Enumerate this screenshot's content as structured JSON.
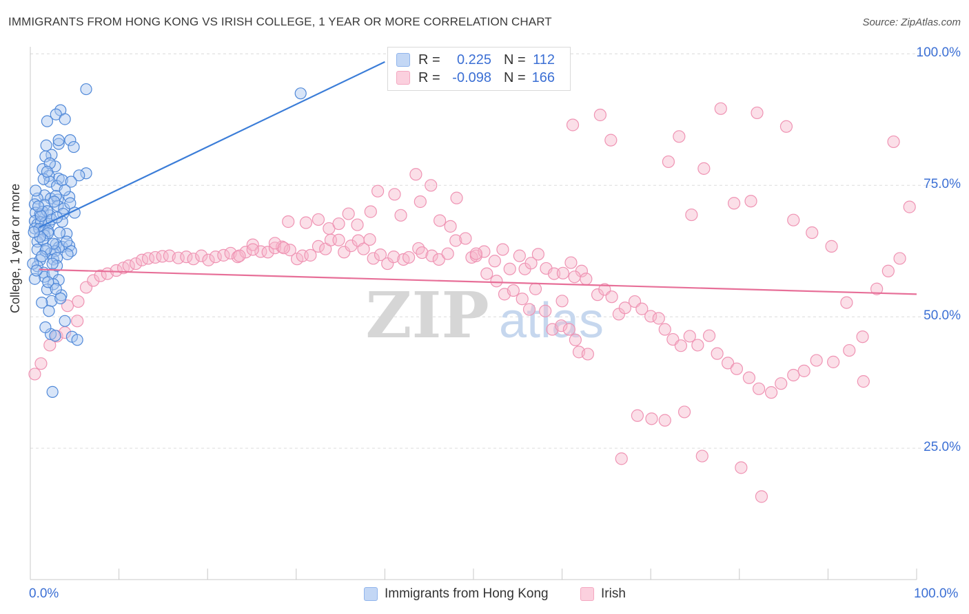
{
  "title": "IMMIGRANTS FROM HONG KONG VS IRISH COLLEGE, 1 YEAR OR MORE CORRELATION CHART",
  "source": "Source: ZipAtlas.com",
  "watermark": {
    "zip": "ZIP",
    "atlas": "atlas"
  },
  "legend": {
    "rows": [
      {
        "label": "R =",
        "r": "0.225",
        "n_label": "N =",
        "n": "112",
        "color": "#8fb4ec"
      },
      {
        "label": "R =",
        "r": "-0.098",
        "n_label": "N =",
        "n": "166",
        "color": "#f4a7c0"
      }
    ]
  },
  "chart_data": {
    "type": "scatter",
    "title": "IMMIGRANTS FROM HONG KONG VS IRISH COLLEGE, 1 YEAR OR MORE CORRELATION CHART",
    "xlabel": "",
    "ylabel": "College, 1 year or more",
    "xlim": [
      0,
      100
    ],
    "ylim": [
      0,
      103
    ],
    "x_tick_labels": [
      "0.0%",
      "100.0%"
    ],
    "y_tick_labels": [
      "25.0%",
      "50.0%",
      "75.0%",
      "100.0%"
    ],
    "y_tick_values": [
      25,
      50,
      75,
      100
    ],
    "grid": true,
    "series": [
      {
        "name": "Immigrants from Hong Kong",
        "color": "#3b7dd8",
        "fill": "#a9c6f0",
        "trend": {
          "x": [
            1,
            40
          ],
          "y": [
            67,
            98.5
          ]
        },
        "points": [
          [
            6.3,
            93.3
          ],
          [
            30.5,
            92.5
          ],
          [
            3.4,
            89.3
          ],
          [
            2.9,
            88.5
          ],
          [
            1.9,
            87.2
          ],
          [
            3.9,
            87.6
          ],
          [
            1.8,
            82.6
          ],
          [
            3.2,
            82.9
          ],
          [
            3.2,
            83.6
          ],
          [
            4.5,
            83.6
          ],
          [
            4.9,
            82.3
          ],
          [
            2.4,
            80.8
          ],
          [
            1.7,
            80.5
          ],
          [
            1.4,
            78.1
          ],
          [
            2.8,
            78.6
          ],
          [
            3.2,
            76.3
          ],
          [
            2.1,
            76.8
          ],
          [
            2.2,
            75.7
          ],
          [
            3.0,
            74.9
          ],
          [
            3.6,
            76.0
          ],
          [
            6.3,
            77.3
          ],
          [
            5.5,
            76.9
          ],
          [
            4.6,
            75.7
          ],
          [
            1.6,
            73.1
          ],
          [
            0.8,
            72.5
          ],
          [
            2.3,
            72.5
          ],
          [
            3.1,
            72.3
          ],
          [
            2.9,
            73.0
          ],
          [
            4.4,
            72.8
          ],
          [
            0.5,
            71.4
          ],
          [
            1.6,
            71.3
          ],
          [
            3.1,
            71.1
          ],
          [
            3.8,
            70.6
          ],
          [
            4.5,
            71.6
          ],
          [
            0.6,
            69.8
          ],
          [
            1.1,
            69.5
          ],
          [
            1.4,
            70.0
          ],
          [
            2.2,
            69.3
          ],
          [
            3.7,
            69.6
          ],
          [
            5.0,
            69.8
          ],
          [
            0.5,
            68.2
          ],
          [
            0.8,
            67.6
          ],
          [
            1.2,
            68.0
          ],
          [
            1.7,
            67.9
          ],
          [
            2.1,
            67.7
          ],
          [
            3.6,
            68.1
          ],
          [
            0.5,
            66.8
          ],
          [
            1.0,
            66.7
          ],
          [
            1.5,
            66.4
          ],
          [
            2.0,
            66.3
          ],
          [
            1.6,
            65.5
          ],
          [
            2.0,
            65.9
          ],
          [
            4.1,
            65.8
          ],
          [
            0.8,
            64.3
          ],
          [
            1.4,
            64.7
          ],
          [
            2.9,
            63.8
          ],
          [
            3.2,
            63.2
          ],
          [
            3.6,
            63.3
          ],
          [
            4.4,
            63.5
          ],
          [
            0.8,
            62.8
          ],
          [
            1.7,
            62.5
          ],
          [
            2.3,
            62.1
          ],
          [
            2.8,
            62.5
          ],
          [
            4.6,
            62.5
          ],
          [
            1.1,
            60.8
          ],
          [
            2.6,
            60.9
          ],
          [
            3.0,
            61.2
          ],
          [
            0.8,
            59.6
          ],
          [
            1.5,
            58.4
          ],
          [
            1.6,
            57.6
          ],
          [
            2.5,
            58.2
          ],
          [
            0.5,
            57.2
          ],
          [
            3.2,
            57.0
          ],
          [
            2.6,
            56.2
          ],
          [
            1.9,
            55.2
          ],
          [
            3.5,
            54.1
          ],
          [
            2.4,
            53.0
          ],
          [
            1.3,
            52.7
          ],
          [
            3.9,
            49.2
          ],
          [
            2.3,
            46.7
          ],
          [
            2.8,
            46.4
          ],
          [
            4.7,
            46.2
          ],
          [
            5.3,
            45.6
          ],
          [
            2.5,
            35.7
          ],
          [
            0.3,
            60.1
          ],
          [
            1.9,
            70.1
          ],
          [
            2.4,
            68.5
          ],
          [
            1.2,
            69.2
          ],
          [
            3.3,
            66.0
          ],
          [
            0.9,
            71.0
          ],
          [
            2.6,
            63.9
          ],
          [
            1.8,
            62.9
          ],
          [
            4.2,
            61.9
          ],
          [
            0.7,
            58.8
          ],
          [
            3.0,
            59.7
          ],
          [
            2.0,
            56.6
          ],
          [
            1.1,
            65.2
          ],
          [
            2.7,
            71.9
          ],
          [
            3.9,
            74.1
          ],
          [
            1.5,
            76.2
          ],
          [
            2.2,
            79.2
          ],
          [
            4.1,
            64.3
          ],
          [
            0.4,
            66.1
          ],
          [
            1.3,
            61.5
          ],
          [
            2.9,
            55.3
          ],
          [
            3.4,
            53.5
          ],
          [
            2.1,
            51.1
          ],
          [
            1.7,
            48.0
          ],
          [
            0.6,
            74.0
          ],
          [
            1.9,
            77.6
          ],
          [
            3.0,
            68.9
          ],
          [
            2.5,
            60.1
          ]
        ]
      },
      {
        "name": "Irish",
        "color": "#e76f98",
        "fill": "#f6b9cd",
        "trend": {
          "x": [
            1,
            100
          ],
          "y": [
            59,
            54.3
          ]
        },
        "points": [
          [
            0.5,
            39.1
          ],
          [
            1.2,
            41.1
          ],
          [
            2.2,
            44.6
          ],
          [
            3.0,
            46.3
          ],
          [
            3.9,
            47.0
          ],
          [
            5.3,
            49.2
          ],
          [
            4.2,
            52.1
          ],
          [
            5.4,
            52.9
          ],
          [
            6.3,
            55.6
          ],
          [
            7.1,
            56.9
          ],
          [
            7.9,
            57.8
          ],
          [
            8.7,
            58.2
          ],
          [
            9.7,
            58.8
          ],
          [
            10.5,
            59.3
          ],
          [
            11.1,
            59.7
          ],
          [
            11.9,
            60.1
          ],
          [
            12.6,
            60.8
          ],
          [
            13.3,
            61.1
          ],
          [
            14.1,
            61.3
          ],
          [
            14.9,
            61.5
          ],
          [
            15.7,
            61.6
          ],
          [
            16.7,
            61.2
          ],
          [
            17.6,
            61.4
          ],
          [
            18.4,
            61.0
          ],
          [
            19.3,
            61.6
          ],
          [
            20.1,
            60.8
          ],
          [
            20.9,
            61.4
          ],
          [
            21.8,
            61.7
          ],
          [
            22.6,
            62.1
          ],
          [
            23.4,
            61.4
          ],
          [
            24.3,
            62.3
          ],
          [
            25.1,
            63.7
          ],
          [
            26.0,
            62.4
          ],
          [
            26.8,
            62.3
          ],
          [
            27.6,
            63.1
          ],
          [
            28.4,
            63.3
          ],
          [
            29.3,
            62.7
          ],
          [
            30.1,
            61.0
          ],
          [
            30.7,
            61.6
          ],
          [
            31.6,
            61.7
          ],
          [
            32.5,
            63.4
          ],
          [
            33.3,
            62.9
          ],
          [
            33.9,
            64.6
          ],
          [
            34.8,
            64.6
          ],
          [
            35.4,
            62.3
          ],
          [
            36.2,
            63.5
          ],
          [
            37.0,
            64.5
          ],
          [
            37.6,
            62.9
          ],
          [
            38.3,
            64.7
          ],
          [
            38.7,
            61.1
          ],
          [
            39.5,
            61.8
          ],
          [
            40.3,
            60.1
          ],
          [
            41.0,
            61.4
          ],
          [
            42.1,
            60.9
          ],
          [
            42.7,
            61.3
          ],
          [
            43.8,
            63.0
          ],
          [
            44.2,
            62.2
          ],
          [
            45.3,
            61.6
          ],
          [
            46.1,
            60.9
          ],
          [
            47.1,
            62.0
          ],
          [
            47.4,
            67.2
          ],
          [
            48.0,
            64.5
          ],
          [
            49.1,
            64.9
          ],
          [
            49.8,
            61.3
          ],
          [
            50.3,
            61.6
          ],
          [
            51.2,
            62.4
          ],
          [
            52.4,
            60.6
          ],
          [
            53.3,
            62.8
          ],
          [
            54.1,
            59.1
          ],
          [
            55.2,
            61.6
          ],
          [
            55.8,
            59.1
          ],
          [
            56.5,
            60.2
          ],
          [
            57.3,
            61.9
          ],
          [
            58.2,
            59.2
          ],
          [
            59.1,
            58.2
          ],
          [
            60.1,
            58.3
          ],
          [
            61.0,
            60.3
          ],
          [
            62.2,
            58.7
          ],
          [
            23.6,
            61.6
          ],
          [
            25.1,
            62.8
          ],
          [
            27.6,
            64.0
          ],
          [
            28.6,
            63.1
          ],
          [
            29.1,
            68.1
          ],
          [
            31.1,
            67.9
          ],
          [
            32.5,
            68.5
          ],
          [
            33.7,
            66.8
          ],
          [
            34.8,
            67.7
          ],
          [
            35.9,
            69.6
          ],
          [
            36.9,
            67.5
          ],
          [
            38.4,
            70.0
          ],
          [
            39.2,
            73.9
          ],
          [
            41.1,
            73.3
          ],
          [
            41.8,
            69.3
          ],
          [
            43.5,
            77.1
          ],
          [
            44.0,
            71.9
          ],
          [
            45.2,
            75.0
          ],
          [
            46.2,
            68.3
          ],
          [
            48.1,
            72.6
          ],
          [
            50.3,
            62.0
          ],
          [
            51.5,
            58.2
          ],
          [
            52.6,
            56.8
          ],
          [
            53.5,
            54.3
          ],
          [
            54.5,
            55.0
          ],
          [
            55.5,
            53.4
          ],
          [
            56.3,
            51.4
          ],
          [
            57.0,
            55.3
          ],
          [
            58.1,
            51.1
          ],
          [
            58.9,
            47.6
          ],
          [
            59.9,
            48.3
          ],
          [
            60.8,
            47.6
          ],
          [
            61.5,
            45.6
          ],
          [
            61.9,
            43.3
          ],
          [
            62.9,
            42.9
          ],
          [
            64.0,
            54.2
          ],
          [
            64.8,
            55.2
          ],
          [
            65.6,
            53.8
          ],
          [
            66.4,
            50.5
          ],
          [
            67.1,
            51.7
          ],
          [
            68.2,
            52.9
          ],
          [
            69.0,
            51.5
          ],
          [
            70.0,
            50.1
          ],
          [
            70.9,
            49.7
          ],
          [
            71.6,
            47.6
          ],
          [
            72.5,
            45.7
          ],
          [
            73.4,
            44.5
          ],
          [
            74.4,
            46.3
          ],
          [
            75.3,
            44.6
          ],
          [
            76.6,
            46.4
          ],
          [
            77.5,
            43.0
          ],
          [
            78.7,
            41.2
          ],
          [
            79.7,
            40.1
          ],
          [
            81.1,
            38.4
          ],
          [
            82.2,
            36.3
          ],
          [
            83.6,
            35.6
          ],
          [
            84.7,
            37.3
          ],
          [
            86.1,
            38.9
          ],
          [
            87.3,
            39.7
          ],
          [
            88.7,
            41.7
          ],
          [
            90.6,
            41.4
          ],
          [
            92.4,
            43.6
          ],
          [
            93.9,
            46.2
          ],
          [
            95.5,
            55.3
          ],
          [
            96.8,
            58.7
          ],
          [
            98.1,
            61.1
          ],
          [
            99.2,
            70.9
          ],
          [
            61.2,
            86.5
          ],
          [
            64.3,
            88.4
          ],
          [
            65.5,
            83.6
          ],
          [
            73.2,
            84.3
          ],
          [
            74.6,
            69.4
          ],
          [
            77.9,
            89.6
          ],
          [
            82.0,
            88.8
          ],
          [
            85.3,
            86.2
          ],
          [
            97.4,
            83.3
          ],
          [
            72.0,
            79.5
          ],
          [
            76.0,
            78.2
          ],
          [
            79.4,
            71.6
          ],
          [
            81.3,
            72.0
          ],
          [
            86.1,
            68.4
          ],
          [
            88.2,
            66.0
          ],
          [
            90.4,
            63.4
          ],
          [
            92.1,
            52.7
          ],
          [
            94.0,
            37.7
          ],
          [
            68.5,
            31.2
          ],
          [
            70.1,
            30.6
          ],
          [
            71.6,
            30.3
          ],
          [
            73.8,
            31.9
          ],
          [
            66.7,
            23.0
          ],
          [
            75.8,
            23.5
          ],
          [
            80.2,
            21.3
          ],
          [
            82.5,
            15.8
          ],
          [
            60.0,
            53.0
          ],
          [
            61.4,
            57.6
          ],
          [
            62.7,
            57.2
          ]
        ]
      }
    ]
  },
  "bottom_legend": [
    {
      "label": "Immigrants from Hong Kong"
    },
    {
      "label": "Irish"
    }
  ]
}
